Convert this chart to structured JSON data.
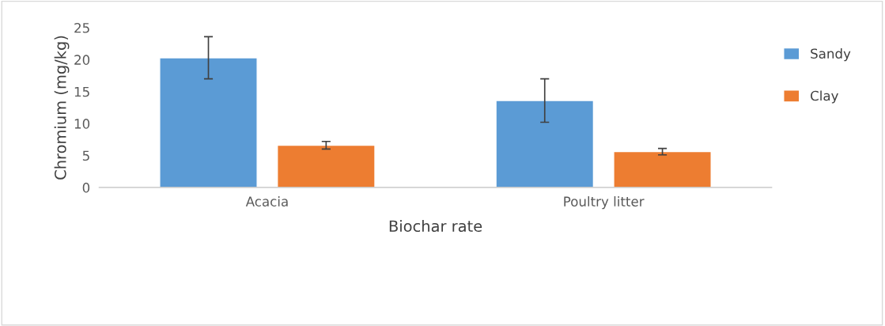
{
  "chart_data": {
    "type": "bar",
    "xlabel": "Biochar rate",
    "ylabel": "Chromium (mg/kg)",
    "categories": [
      "Acacia",
      "Poultry litter"
    ],
    "series": [
      {
        "name": "Sandy",
        "color": "#5b9bd5",
        "values": [
          20.3,
          13.6
        ],
        "errors": [
          3.3,
          3.4
        ]
      },
      {
        "name": "Clay",
        "color": "#ed7d31",
        "values": [
          6.6,
          5.6
        ],
        "errors": [
          0.6,
          0.5
        ]
      }
    ],
    "ylim": [
      0,
      25
    ],
    "yticks": [
      0,
      5,
      10,
      15,
      20,
      25
    ],
    "grid": false,
    "legend": "right"
  }
}
